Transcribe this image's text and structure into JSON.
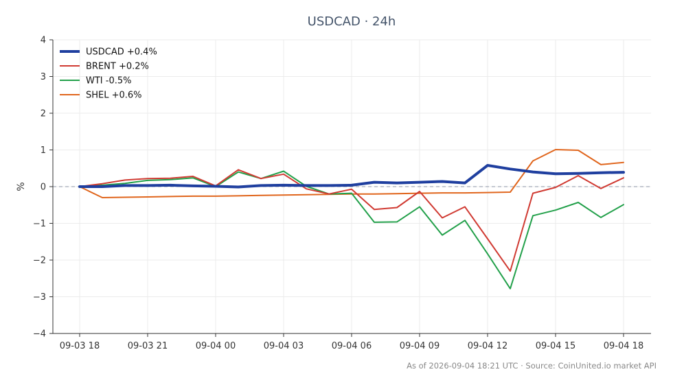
{
  "chart_data": {
    "type": "line",
    "title": "USDCAD · 24h",
    "xlabel": "",
    "ylabel": "%",
    "ylim": [
      -4,
      4
    ],
    "y_ticks": [
      -4,
      -3,
      -2,
      -1,
      0,
      1,
      2,
      3,
      4
    ],
    "y_tick_labels": [
      "−4",
      "−3",
      "−2",
      "−1",
      "0",
      "1",
      "2",
      "3",
      "4"
    ],
    "x_tick_labels": [
      "09-03 18",
      "09-03 21",
      "09-04 00",
      "09-04 03",
      "09-04 06",
      "09-04 09",
      "09-04 12",
      "09-04 15",
      "09-04 18"
    ],
    "x": [
      "09-03 18:00",
      "09-03 19:00",
      "09-03 20:00",
      "09-03 21:00",
      "09-03 22:00",
      "09-03 23:00",
      "09-04 00:00",
      "09-04 01:00",
      "09-04 02:00",
      "09-04 03:00",
      "09-04 04:00",
      "09-04 05:00",
      "09-04 06:00",
      "09-04 07:00",
      "09-04 08:00",
      "09-04 09:00",
      "09-04 10:00",
      "09-04 11:00",
      "09-04 12:00",
      "09-04 13:00",
      "09-04 14:00",
      "09-04 15:00",
      "09-04 16:00",
      "09-04 17:00",
      "09-04 18:00"
    ],
    "zero_line": true,
    "grid": true,
    "legend_position": "top-left",
    "series": [
      {
        "name": "USDCAD +0.4%",
        "color": "#1f3f9f",
        "values": [
          0.0,
          0.0,
          0.03,
          0.03,
          0.04,
          0.02,
          0.01,
          -0.01,
          0.03,
          0.04,
          0.03,
          0.03,
          0.04,
          0.12,
          0.1,
          0.12,
          0.14,
          0.1,
          0.58,
          0.48,
          0.4,
          0.35,
          0.36,
          0.38,
          0.39
        ]
      },
      {
        "name": "BRENT +0.2%",
        "color": "#d03a32",
        "values": [
          0.0,
          0.08,
          0.18,
          0.22,
          0.23,
          0.28,
          0.02,
          0.46,
          0.22,
          0.34,
          -0.06,
          -0.2,
          -0.07,
          -0.62,
          -0.57,
          -0.13,
          -0.85,
          -0.55,
          -1.42,
          -2.3,
          -0.18,
          -0.02,
          0.3,
          -0.05,
          0.24
        ]
      },
      {
        "name": "WTI -0.5%",
        "color": "#22a04a",
        "values": [
          0.0,
          0.04,
          0.09,
          0.17,
          0.19,
          0.24,
          0.0,
          0.4,
          0.22,
          0.42,
          0.01,
          -0.2,
          -0.18,
          -0.97,
          -0.96,
          -0.55,
          -1.32,
          -0.92,
          -1.83,
          -2.78,
          -0.79,
          -0.64,
          -0.43,
          -0.84,
          -0.49
        ]
      },
      {
        "name": "SHEL +0.6%",
        "color": "#e0651c",
        "values": [
          0.0,
          -0.3,
          -0.29,
          -0.28,
          -0.27,
          -0.26,
          -0.26,
          -0.25,
          -0.24,
          -0.23,
          -0.22,
          -0.21,
          -0.2,
          -0.2,
          -0.19,
          -0.18,
          -0.17,
          -0.17,
          -0.16,
          -0.15,
          0.7,
          1.01,
          0.99,
          0.6,
          0.66
        ]
      }
    ]
  },
  "footer": "As of 2026-09-04 18:21 UTC · Source: CoinUnited.io market API"
}
